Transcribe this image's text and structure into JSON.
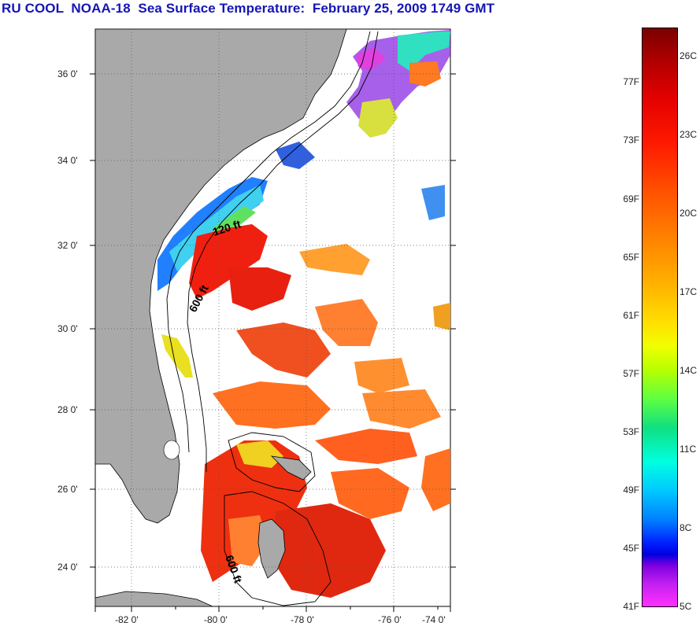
{
  "title": "RU COOL  NOAA-18  Sea Surface Temperature:  February 25, 2009 1749 GMT",
  "lat_labels": [
    "36 0'",
    "34 0'",
    "32 0'",
    "30 0'",
    "28 0'",
    "26 0'",
    "24 0'"
  ],
  "lon_labels": [
    "-82 0'",
    "-80 0'",
    "-78 0'",
    "-76 0'",
    "-74 0'"
  ],
  "depth_labels": [
    "120 ft",
    "600 ft",
    "600 ft"
  ],
  "colorbar": {
    "fahrenheit": [
      "77F",
      "73F",
      "69F",
      "65F",
      "61F",
      "57F",
      "53F",
      "49F",
      "45F",
      "41F"
    ],
    "celsius": [
      "26C",
      "23C",
      "20C",
      "17C",
      "14C",
      "11C",
      "8C",
      "5C"
    ]
  },
  "colors": {
    "land": "#a9a9a9",
    "ocean_no_data": "#ffffff",
    "title": "#1515b5"
  }
}
